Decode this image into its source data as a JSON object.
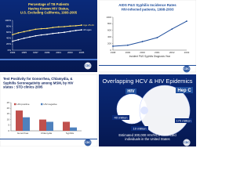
{
  "logo": "CDC",
  "chart_data": [
    {
      "type": "line",
      "title": [
        "Percentage of TB Patients",
        "Having Known HIV Status,",
        "U.S. Excluding California, 1993-2005"
      ],
      "x": [
        1993,
        1994,
        1995,
        1996,
        1997,
        1998,
        1999,
        2000,
        2001,
        2002,
        2003,
        2004,
        2005
      ],
      "xlim": [
        1993,
        2005
      ],
      "series": [
        {
          "name": "Age 25-44",
          "color": "#ffe066",
          "values": [
            52,
            58,
            62,
            66,
            70,
            72,
            73,
            76,
            78,
            79,
            81,
            82,
            84
          ]
        },
        {
          "name": "All ages",
          "color": "#ffffff",
          "values": [
            30,
            35,
            40,
            44,
            48,
            51,
            53,
            56,
            58,
            60,
            63,
            66,
            68
          ]
        }
      ],
      "ylim": [
        0,
        100
      ],
      "yticks": [
        {
          "value": 0,
          "label": "0%"
        },
        {
          "value": 20,
          "label": "20%"
        },
        {
          "value": 40,
          "label": "40%"
        },
        {
          "value": 60,
          "label": "60%"
        },
        {
          "value": 80,
          "label": "80%"
        },
        {
          "value": 100,
          "label": "100%"
        }
      ]
    },
    {
      "type": "line",
      "title": [
        "AIDS P&S Syphilis Incidence Rates",
        "HIV-infected patients, 1998-2003"
      ],
      "x": [
        1998,
        1999,
        2000,
        2001,
        2002,
        2003
      ],
      "xlim": [
        1998,
        2003
      ],
      "xlabel": "Incident P&S Syphilis Diagnosis Year",
      "series": [
        {
          "name": "HIV-infected",
          "color": "#1f4e9c",
          "values": [
            120,
            150,
            260,
            380,
            640,
            880
          ]
        }
      ],
      "ylim": [
        0,
        1000
      ],
      "yticks": [
        0,
        200,
        400,
        600,
        800,
        1000
      ]
    },
    {
      "type": "bar",
      "title": [
        "Test Positivity for Gonorrhea, Chlamydia, &",
        "Syphilis Seronegativity among MSM, by HIV",
        "status : STD clinics 2005"
      ],
      "categories": [
        "Gonorrhea",
        "Chlamydia",
        "Syphilis"
      ],
      "series": [
        {
          "name": "HIV-positive",
          "color": "#c0504d",
          "values": [
            18,
            10,
            8
          ]
        },
        {
          "name": "HIV-negative",
          "color": "#4f81bd",
          "values": [
            12,
            8,
            3
          ]
        }
      ],
      "ylim": [
        0,
        25
      ],
      "yticks": [
        0,
        5,
        10,
        15,
        20,
        25
      ]
    }
  ],
  "diagram": {
    "title": "Overlapping HCV & HIV Epidemics",
    "circles": [
      "HIV",
      "Hep C"
    ],
    "figures": [
      "40 million",
      "10 million",
      "170 million"
    ],
    "caption": [
      "Estimated 300,000 HIV/HCV-coinfected",
      "individuals in the United States"
    ]
  }
}
